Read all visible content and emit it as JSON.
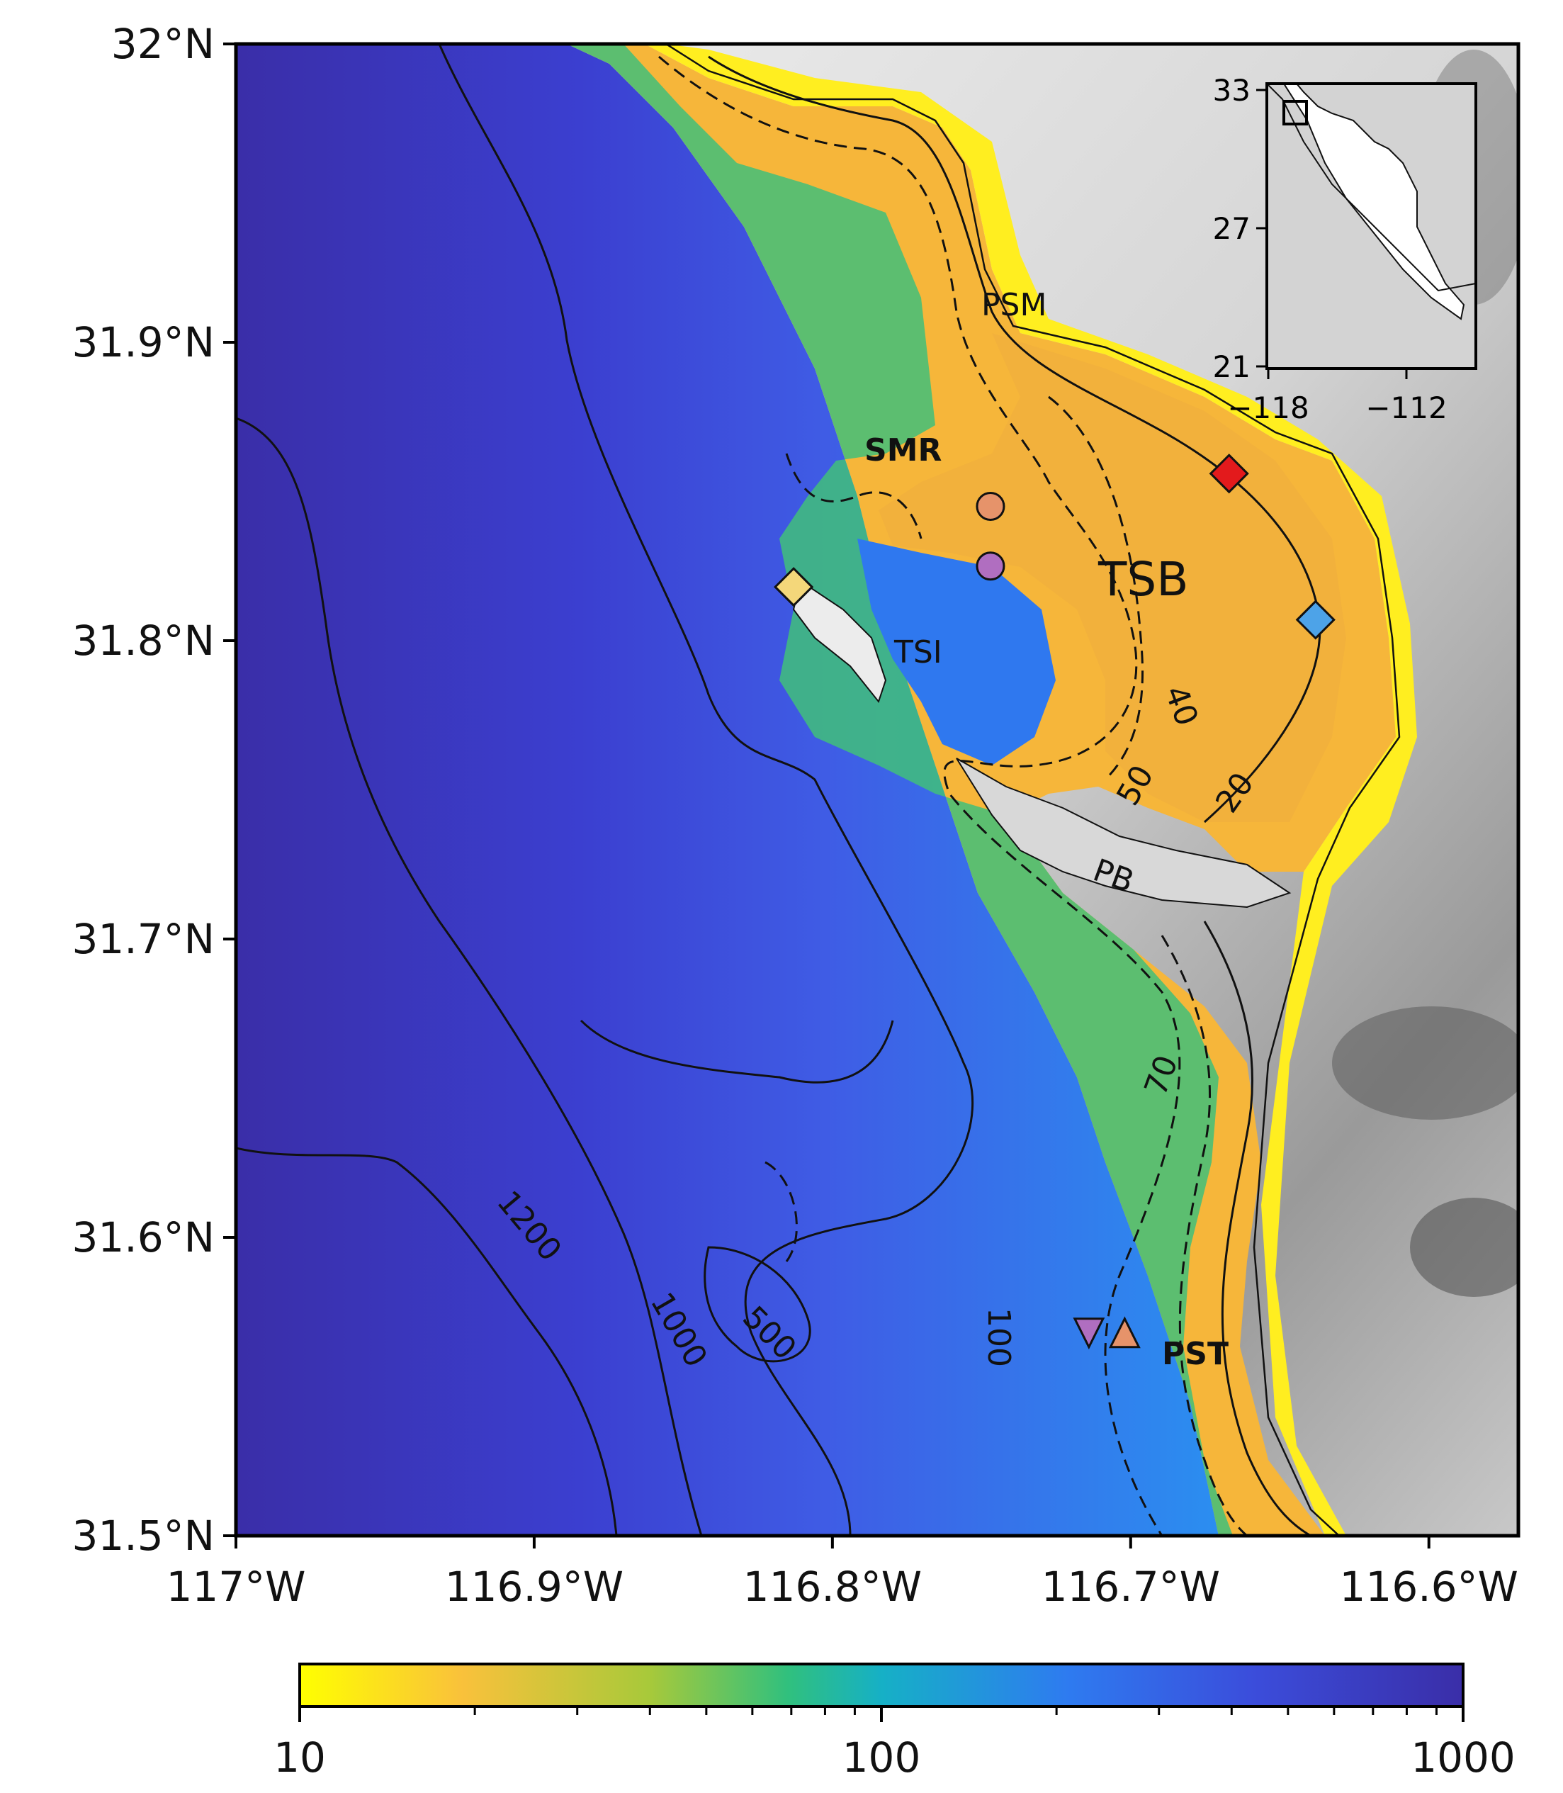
{
  "map": {
    "lat_ticks": [
      "32°N",
      "31.9°N",
      "31.8°N",
      "31.7°N",
      "31.6°N",
      "31.5°N"
    ],
    "lon_ticks": [
      "117°W",
      "116.9°W",
      "116.8°W",
      "116.7°W",
      "116.6°W"
    ],
    "lon_range": [
      -117.0,
      -116.57
    ],
    "lat_range": [
      31.5,
      32.0
    ],
    "place_labels": [
      {
        "id": "psm",
        "text": "PSM",
        "bold": false
      },
      {
        "id": "smr",
        "text": "SMR",
        "bold": true
      },
      {
        "id": "tsb",
        "text": "TSB",
        "bold": false
      },
      {
        "id": "tsi",
        "text": "TSI",
        "bold": false
      },
      {
        "id": "pb",
        "text": "PB",
        "bold": false
      },
      {
        "id": "pst",
        "text": "PST",
        "bold": true
      }
    ],
    "contour_labels": [
      "20",
      "40",
      "50",
      "70",
      "100",
      "500",
      "1000",
      "1200"
    ],
    "markers": [
      {
        "shape": "diamond",
        "color": "#e31a1c",
        "lon": -116.667,
        "lat": 31.856
      },
      {
        "shape": "diamond",
        "color": "#4da3e8",
        "lon": -116.638,
        "lat": 31.807
      },
      {
        "shape": "diamond",
        "color": "#f4d77a",
        "lon": -116.813,
        "lat": 31.818
      },
      {
        "shape": "circle",
        "color": "#e6936a",
        "lon": -116.747,
        "lat": 31.845
      },
      {
        "shape": "circle",
        "color": "#b06ec0",
        "lon": -116.747,
        "lat": 31.825
      },
      {
        "shape": "triangle-down",
        "color": "#b06ec0",
        "lon": -116.714,
        "lat": 31.568
      },
      {
        "shape": "triangle-up",
        "color": "#e6936a",
        "lon": -116.702,
        "lat": 31.568
      }
    ]
  },
  "inset": {
    "y_ticks": [
      "33",
      "27",
      "21"
    ],
    "x_ticks": [
      "−118",
      "−112"
    ]
  },
  "colorbar": {
    "ticks": [
      "10",
      "100",
      "1000"
    ],
    "scale": "log",
    "range": [
      10,
      1000
    ],
    "colors": [
      "#ffff00",
      "#f9c13b",
      "#a8c93a",
      "#30c07e",
      "#16b0c6",
      "#2e7bf0",
      "#3b4ddb",
      "#3a2ea8"
    ]
  }
}
